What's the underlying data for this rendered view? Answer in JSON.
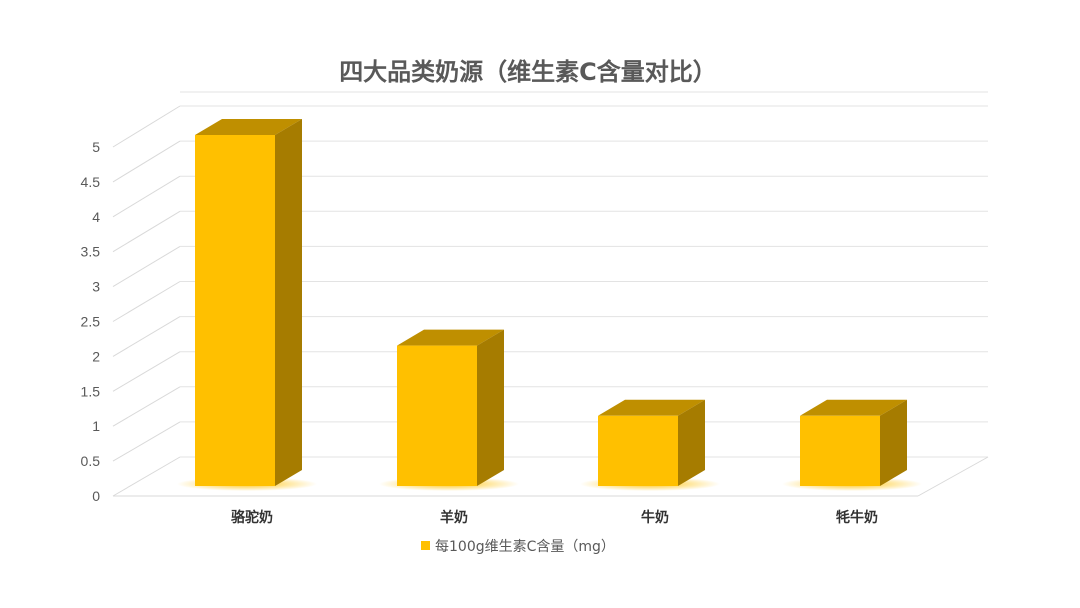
{
  "chart_data": {
    "type": "bar",
    "title": "四大品类奶源（维生素C含量对比）",
    "categories": [
      "骆驼奶",
      "羊奶",
      "牛奶",
      "牦牛奶"
    ],
    "series": [
      {
        "name": "每100g维生素C含量（mg）",
        "values": [
          5,
          2,
          1,
          1
        ]
      }
    ],
    "yticks": [
      "0",
      "0.5",
      "1",
      "1.5",
      "2",
      "2.5",
      "3",
      "3.5",
      "4",
      "4.5",
      "5"
    ],
    "ylim": [
      0,
      5
    ],
    "grid": true,
    "legend": "bottom",
    "style": "3d-column",
    "colors": {
      "front": "#FFC000",
      "side": "#A67C00",
      "top": "#BF8F00"
    }
  }
}
